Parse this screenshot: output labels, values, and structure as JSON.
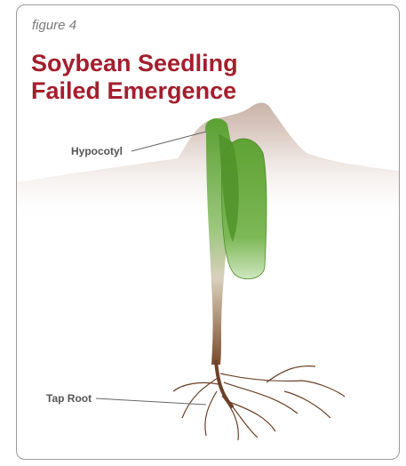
{
  "figure": {
    "label": "figure 4",
    "title": "Soybean Seedling Failed Emergence"
  },
  "labels": [
    {
      "text": "Hypocotyl"
    },
    {
      "text": "Tap Root"
    }
  ]
}
